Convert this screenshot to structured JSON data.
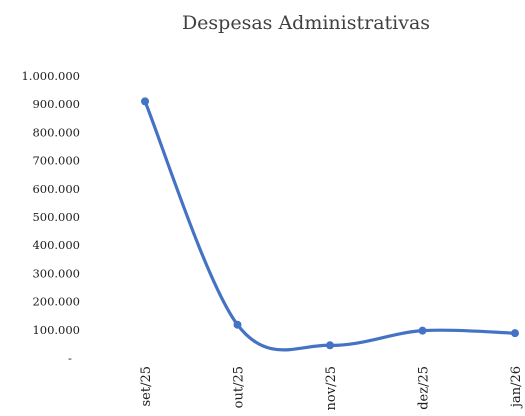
{
  "chart_data": {
    "type": "line",
    "title": "Despesas Administrativas",
    "xlabel": "",
    "ylabel": "",
    "categories": [
      "set/25",
      "out/25",
      "nov/25",
      "dez/25",
      "jan/26"
    ],
    "series": [
      {
        "values": [
          910000,
          118000,
          45000,
          97000,
          88000
        ]
      }
    ],
    "ylim": [
      0,
      1000000
    ],
    "yticks": [
      {
        "value": 1000000,
        "label": "1.000.000"
      },
      {
        "value": 900000,
        "label": "900.000"
      },
      {
        "value": 800000,
        "label": "800.000"
      },
      {
        "value": 700000,
        "label": "700.000"
      },
      {
        "value": 600000,
        "label": "600.000"
      },
      {
        "value": 500000,
        "label": "500.000"
      },
      {
        "value": 400000,
        "label": "400.000"
      },
      {
        "value": 300000,
        "label": "300.000"
      },
      {
        "value": 200000,
        "label": "200.000"
      },
      {
        "value": 100000,
        "label": "100.000"
      },
      {
        "value": 0,
        "label": "-"
      }
    ],
    "grid": false,
    "legend": "none",
    "line_color": "#4472C4",
    "smooth": true
  }
}
